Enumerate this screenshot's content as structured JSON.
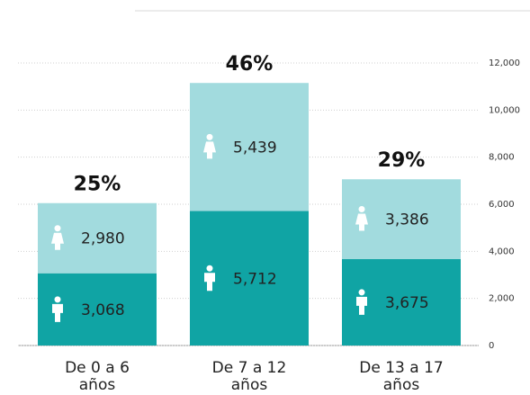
{
  "chart_data": {
    "type": "stacked_bar",
    "categories": [
      "De 0 a 6 años",
      "De 7 a 12 años",
      "De 13 a 17 años"
    ],
    "series": [
      {
        "color": "#10a4a4",
        "values": [
          3068,
          5712,
          3675
        ],
        "value_labels": [
          "3,068",
          "5,712",
          "3,675"
        ]
      },
      {
        "color": "#a2dbde",
        "values": [
          2980,
          5439,
          3386
        ],
        "value_labels": [
          "2,980",
          "5,439",
          "3,386"
        ]
      }
    ],
    "annotations": [
      "25%",
      "46%",
      "29%"
    ],
    "ylim": [
      0,
      12000
    ],
    "yticks": [
      0,
      {
        "value": 2000,
        "label": "2,000"
      },
      {
        "value": 4000,
        "label": "4,000"
      },
      {
        "value": 6000,
        "label": "6,000"
      },
      {
        "value": 8000,
        "label": "8,000"
      },
      {
        "value": 10000,
        "label": "10,000"
      },
      {
        "value": 12000,
        "label": "12,000"
      }
    ],
    "grid": true
  }
}
